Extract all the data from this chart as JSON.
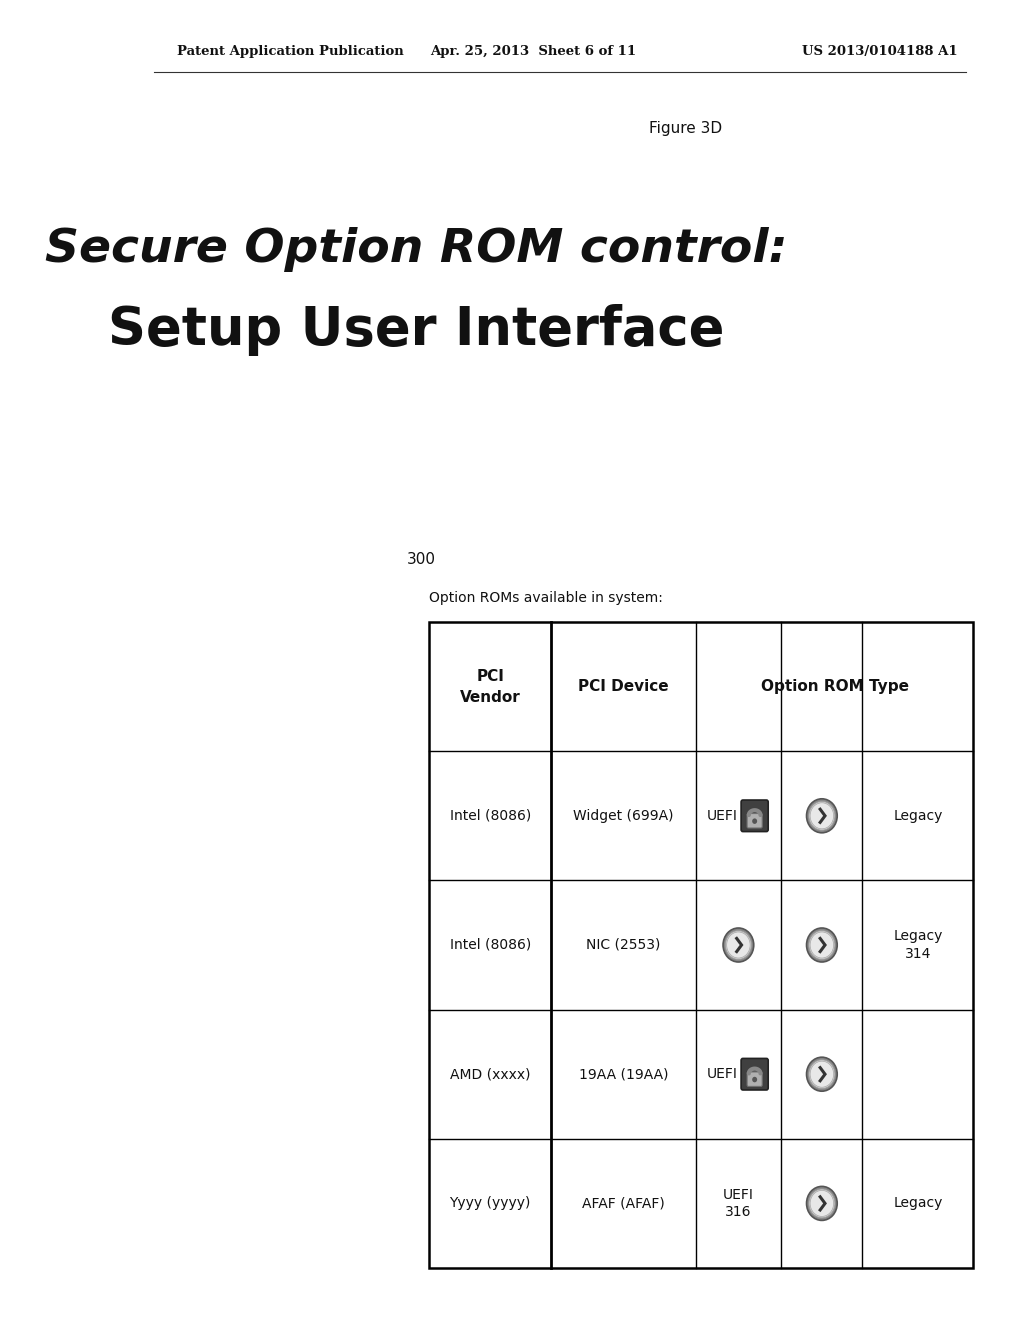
{
  "bg_color": "#ffffff",
  "header_text_left": "Patent Application Publication",
  "header_text_mid": "Apr. 25, 2013  Sheet 6 of 11",
  "header_text_right": "US 2013/0104188 A1",
  "figure_label": "Figure 3D",
  "title_line1": "Secure Option ROM control:",
  "title_line2": "Setup User Interface",
  "ref_number": "300",
  "subtitle": "Option ROMs available in system:",
  "vendors": [
    "Intel (8086)",
    "Intel (8086)",
    "AMD (xxxx)",
    "Yyyy (yyyy)"
  ],
  "devices": [
    "Widget (699A)",
    "NIC (2553)",
    "19AA (19AA)",
    "AFAF (AFAF)"
  ],
  "uefi_text": [
    "UEFI",
    "",
    "UEFI",
    "UEFI\n316"
  ],
  "uefi_has_icon": [
    true,
    false,
    true,
    false
  ],
  "arrow_present": [
    true,
    true,
    true,
    true
  ],
  "arrow_col2_present": [
    false,
    true,
    false,
    false
  ],
  "legacy_text": [
    "Legacy",
    "Legacy\n314",
    "Legacy",
    "Legacy"
  ],
  "legacy_present": [
    true,
    true,
    false,
    true
  ]
}
